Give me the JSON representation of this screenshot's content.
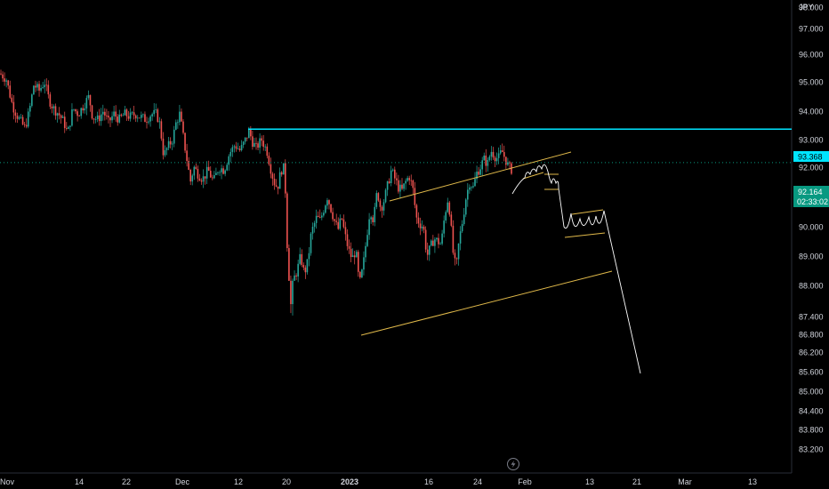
{
  "chart_data": {
    "type": "candlestick",
    "currency": "JPY",
    "y_axis_ticks": [
      "98.000",
      "97.000",
      "96.000",
      "95.000",
      "94.000",
      "93.000",
      "92.000",
      "91.000",
      "90.000",
      "89.000",
      "88.000",
      "87.400",
      "86.800",
      "86.200",
      "85.600",
      "85.000",
      "84.400",
      "83.800",
      "83.200"
    ],
    "x_axis_ticks": [
      {
        "label": "Nov",
        "bold": false
      },
      {
        "label": "14",
        "bold": false
      },
      {
        "label": "22",
        "bold": false
      },
      {
        "label": "Dec",
        "bold": false
      },
      {
        "label": "12",
        "bold": false
      },
      {
        "label": "20",
        "bold": false
      },
      {
        "label": "2023",
        "bold": true
      },
      {
        "label": "16",
        "bold": false
      },
      {
        "label": "24",
        "bold": false
      },
      {
        "label": "Feb",
        "bold": false
      },
      {
        "label": "13",
        "bold": false
      },
      {
        "label": "21",
        "bold": false
      },
      {
        "label": "Mar",
        "bold": false
      },
      {
        "label": "13",
        "bold": false
      }
    ],
    "horizontal_line": {
      "value": 93.368,
      "label": "93.368",
      "color": "#00e5ff"
    },
    "current_price": {
      "value": 92.164,
      "label": "92.164",
      "countdown": "02:33:02",
      "color": "#089981"
    },
    "price_path": [
      [
        0,
        95.3
      ],
      [
        7,
        95.1
      ],
      [
        14,
        94.2
      ],
      [
        20,
        93.8
      ],
      [
        28,
        93.4
      ],
      [
        33,
        94.0
      ],
      [
        38,
        94.9
      ],
      [
        44,
        94.7
      ],
      [
        50,
        95.0
      ],
      [
        55,
        94.4
      ],
      [
        60,
        94.1
      ],
      [
        66,
        93.9
      ],
      [
        72,
        93.6
      ],
      [
        76,
        93.2
      ],
      [
        82,
        94.1
      ],
      [
        88,
        93.9
      ],
      [
        94,
        94.2
      ],
      [
        100,
        94.5
      ],
      [
        104,
        93.8
      ],
      [
        110,
        93.7
      ],
      [
        116,
        94.0
      ],
      [
        122,
        93.6
      ],
      [
        128,
        93.9
      ],
      [
        134,
        93.7
      ],
      [
        140,
        93.9
      ],
      [
        146,
        93.8
      ],
      [
        152,
        93.9
      ],
      [
        158,
        93.8
      ],
      [
        164,
        93.7
      ],
      [
        170,
        93.9
      ],
      [
        176,
        93.9
      ],
      [
        180,
        93.5
      ],
      [
        184,
        92.4
      ],
      [
        188,
        92.7
      ],
      [
        194,
        93.0
      ],
      [
        198,
        93.6
      ],
      [
        202,
        93.9
      ],
      [
        206,
        93.1
      ],
      [
        210,
        92.3
      ],
      [
        214,
        91.5
      ],
      [
        218,
        92.0
      ],
      [
        222,
        91.8
      ],
      [
        228,
        91.6
      ],
      [
        234,
        91.9
      ],
      [
        240,
        91.5
      ],
      [
        246,
        92.0
      ],
      [
        252,
        91.9
      ],
      [
        258,
        92.5
      ],
      [
        264,
        92.8
      ],
      [
        270,
        92.6
      ],
      [
        276,
        93.0
      ],
      [
        280,
        93.3
      ],
      [
        284,
        92.9
      ],
      [
        288,
        92.7
      ],
      [
        294,
        93.0
      ],
      [
        300,
        92.6
      ],
      [
        304,
        92.0
      ],
      [
        308,
        91.5
      ],
      [
        312,
        91.3
      ],
      [
        316,
        91.9
      ],
      [
        320,
        92.0
      ],
      [
        322,
        90.0
      ],
      [
        324,
        88.6
      ],
      [
        327,
        87.6
      ],
      [
        330,
        88.2
      ],
      [
        334,
        88.5
      ],
      [
        338,
        89.0
      ],
      [
        342,
        88.4
      ],
      [
        346,
        88.8
      ],
      [
        350,
        89.8
      ],
      [
        356,
        90.3
      ],
      [
        360,
        90.2
      ],
      [
        364,
        90.6
      ],
      [
        368,
        91.0
      ],
      [
        372,
        90.6
      ],
      [
        376,
        90.2
      ],
      [
        380,
        89.9
      ],
      [
        384,
        90.3
      ],
      [
        388,
        89.7
      ],
      [
        392,
        89.2
      ],
      [
        396,
        88.9
      ],
      [
        400,
        89.2
      ],
      [
        404,
        88.0
      ],
      [
        408,
        88.6
      ],
      [
        412,
        89.6
      ],
      [
        416,
        90.6
      ],
      [
        420,
        90.2
      ],
      [
        424,
        91.2
      ],
      [
        428,
        90.6
      ],
      [
        432,
        90.9
      ],
      [
        436,
        91.4
      ],
      [
        440,
        91.9
      ],
      [
        444,
        91.6
      ],
      [
        448,
        91.3
      ],
      [
        452,
        91.2
      ],
      [
        456,
        91.5
      ],
      [
        460,
        91.7
      ],
      [
        464,
        91.3
      ],
      [
        468,
        90.3
      ],
      [
        472,
        90.1
      ],
      [
        476,
        90.0
      ],
      [
        480,
        89.0
      ],
      [
        484,
        89.3
      ],
      [
        488,
        89.6
      ],
      [
        492,
        89.5
      ],
      [
        496,
        89.4
      ],
      [
        500,
        90.4
      ],
      [
        504,
        91.0
      ],
      [
        507,
        90.0
      ],
      [
        510,
        88.9
      ],
      [
        513,
        88.6
      ],
      [
        516,
        89.5
      ],
      [
        520,
        90.2
      ],
      [
        524,
        91.0
      ],
      [
        528,
        91.5
      ],
      [
        532,
        91.3
      ],
      [
        536,
        91.8
      ],
      [
        540,
        92.0
      ],
      [
        544,
        92.3
      ],
      [
        548,
        92.1
      ],
      [
        552,
        92.6
      ],
      [
        556,
        92.4
      ],
      [
        560,
        92.3
      ],
      [
        564,
        92.6
      ],
      [
        568,
        92.3
      ],
      [
        572,
        92.0
      ],
      [
        576,
        91.9
      ]
    ],
    "price_min": 83.2,
    "price_max": 98.0,
    "drawings": {
      "channel_color": "#e0b94a",
      "projection_color": "#ffffff"
    }
  },
  "toolbar": {
    "lightning_icon": "lightning-icon"
  }
}
